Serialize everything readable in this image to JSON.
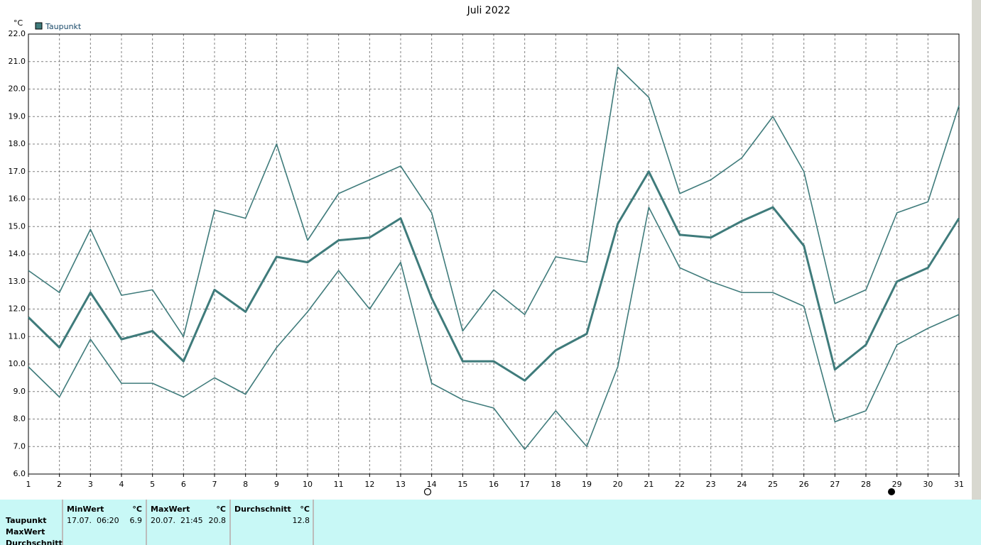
{
  "chart_data": {
    "type": "line",
    "title": "Juli 2022",
    "y_unit": "°C",
    "x": [
      1,
      2,
      3,
      4,
      5,
      6,
      7,
      8,
      9,
      10,
      11,
      12,
      13,
      14,
      15,
      16,
      17,
      18,
      19,
      20,
      21,
      22,
      23,
      24,
      25,
      26,
      27,
      28,
      29,
      30,
      31
    ],
    "xlim": [
      1,
      31
    ],
    "xticks": [
      1,
      2,
      3,
      4,
      5,
      6,
      7,
      8,
      9,
      10,
      11,
      12,
      13,
      14,
      15,
      16,
      17,
      18,
      19,
      20,
      21,
      22,
      23,
      24,
      25,
      26,
      27,
      28,
      29,
      30,
      31
    ],
    "ylim": [
      6,
      22
    ],
    "yticks": [
      {
        "value": 6,
        "label": "6.0"
      },
      {
        "value": 7,
        "label": "7.0"
      },
      {
        "value": 8,
        "label": "8.0"
      },
      {
        "value": 9,
        "label": "9.0"
      },
      {
        "value": 10,
        "label": "10.0"
      },
      {
        "value": 11,
        "label": "11.0"
      },
      {
        "value": 12,
        "label": "12.0"
      },
      {
        "value": 13,
        "label": "13.0"
      },
      {
        "value": 14,
        "label": "14.0"
      },
      {
        "value": 15,
        "label": "15.0"
      },
      {
        "value": 16,
        "label": "16.0"
      },
      {
        "value": 17,
        "label": "17.0"
      },
      {
        "value": 18,
        "label": "18.0"
      },
      {
        "value": 19,
        "label": "19.0"
      },
      {
        "value": 20,
        "label": "20.0"
      },
      {
        "value": 21,
        "label": "21.0"
      },
      {
        "value": 22,
        "label": "22.0"
      }
    ],
    "grid": true,
    "legend": "top-left",
    "series": [
      {
        "name": "Taupunkt",
        "color": "#3f7b7b",
        "values": [
          11.7,
          10.6,
          12.6,
          10.9,
          11.2,
          10.1,
          12.7,
          11.9,
          13.9,
          13.7,
          14.5,
          14.6,
          15.3,
          12.4,
          10.1,
          10.1,
          9.4,
          10.5,
          11.1,
          15.1,
          17.0,
          14.7,
          14.6,
          15.2,
          15.7,
          14.3,
          9.8,
          10.7,
          13.0,
          13.5,
          15.3
        ]
      },
      {
        "color": "#3f7b7b",
        "values": [
          13.4,
          12.6,
          14.9,
          12.5,
          12.7,
          11.0,
          15.6,
          15.3,
          18.0,
          14.5,
          16.2,
          16.7,
          17.2,
          15.5,
          11.2,
          12.7,
          11.8,
          13.9,
          13.7,
          20.8,
          19.7,
          16.2,
          16.7,
          17.5,
          19.0,
          17.0,
          12.2,
          12.7,
          15.5,
          15.9,
          19.4
        ]
      },
      {
        "color": "#3f7b7b",
        "values": [
          9.9,
          8.8,
          10.9,
          9.3,
          9.3,
          8.8,
          9.5,
          8.9,
          10.6,
          11.9,
          13.4,
          12.0,
          13.7,
          9.3,
          8.7,
          8.4,
          6.9,
          8.3,
          7.0,
          9.9,
          15.7,
          13.5,
          13.0,
          12.6,
          12.6,
          12.1,
          7.9,
          8.3,
          10.7,
          11.3,
          11.8
        ]
      }
    ]
  },
  "summary_table": {
    "row_labels": [
      "Taupunkt",
      "MaxWert",
      "Durchschnitt"
    ],
    "columns": [
      {
        "header": "MinWert",
        "unit": "°C",
        "time": "17.07.  06:20",
        "value": 6.9
      },
      {
        "header": "MaxWert",
        "unit": "°C",
        "time": "20.07.  21:45",
        "value": 20.8
      },
      {
        "header": "Durchschnitt",
        "unit": "°C",
        "value": 12.8
      }
    ]
  }
}
